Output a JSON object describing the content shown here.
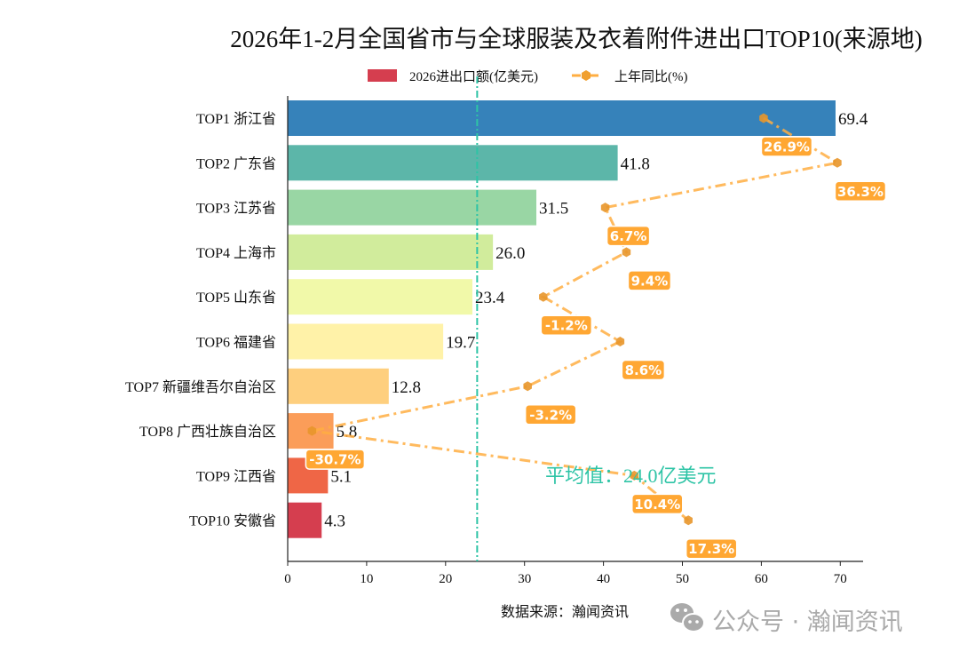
{
  "chart_data": {
    "type": "bar",
    "orientation": "horizontal",
    "title": "2026年1-2月全国省市与全球服装及衣着附件进出口TOP10(来源地)",
    "categories": [
      "TOP1 浙江省",
      "TOP2 广东省",
      "TOP3 江苏省",
      "TOP4 上海市",
      "TOP5 山东省",
      "TOP6 福建省",
      "TOP7 新疆维吾尔自治区",
      "TOP8 广西壮族自治区",
      "TOP9 江西省",
      "TOP10 安徽省"
    ],
    "series": [
      {
        "name": "2026进出口额(亿美元)",
        "type": "bar",
        "values": [
          69.4,
          41.8,
          31.5,
          26.0,
          23.4,
          19.7,
          12.8,
          5.8,
          5.1,
          4.3
        ],
        "value_labels": [
          "69.4",
          "41.8",
          "31.5",
          "26.0",
          "23.4",
          "19.7",
          "12.8",
          "5.8",
          "5.1",
          "4.3"
        ],
        "colors": [
          "#3682ba",
          "#5cb6a9",
          "#99d6a4",
          "#d1ec9c",
          "#f1f9a9",
          "#fff2a8",
          "#fecf7e",
          "#fb9d59",
          "#ef6646",
          "#d53e4f"
        ]
      },
      {
        "name": "上年同比(%)",
        "type": "line",
        "values": [
          26.9,
          36.3,
          6.7,
          9.4,
          -1.2,
          8.6,
          -3.2,
          -30.7,
          10.4,
          17.3
        ],
        "value_labels": [
          "26.9%",
          "36.3%",
          "6.7%",
          "9.4%",
          "-1.2%",
          "8.6%",
          "-3.2%",
          "-30.7%",
          "10.4%",
          "17.3%"
        ],
        "color": "#ffae42"
      }
    ],
    "xlim": [
      0,
      73
    ],
    "xticks": [
      "0",
      "10",
      "20",
      "30",
      "40",
      "50",
      "60",
      "70"
    ],
    "secondary_xlim": [
      -33.8,
      39.7
    ],
    "average": {
      "value": 24.0,
      "label": "平均值：24.0亿美元",
      "color": "#2ec4a6"
    },
    "legend": "top-center",
    "grid": false
  },
  "footer": {
    "source": "数据来源：瀚闻资讯",
    "watermark": "公众号 · 瀚闻资讯"
  }
}
